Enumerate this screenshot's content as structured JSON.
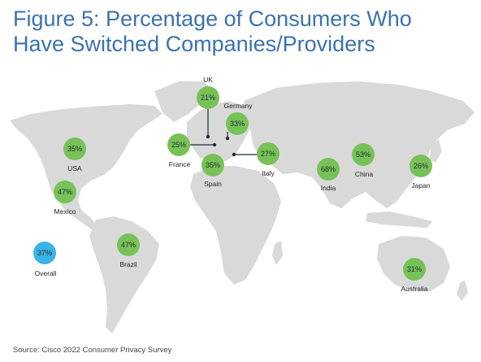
{
  "title_line1": "Figure 5: Percentage of Consumers Who",
  "title_line2": "Have Switched Companies/Providers",
  "source": "Source: Cisco 2022 Consumer Privacy Survey",
  "colors": {
    "title": "#3a72b0",
    "bubble": "#77c257",
    "overall": "#3ab4e6",
    "land": "#d9d9d9"
  },
  "regions": [
    {
      "name": "UK",
      "value": "21%"
    },
    {
      "name": "Germany",
      "value": "33%"
    },
    {
      "name": "France",
      "value": "25%"
    },
    {
      "name": "Spain",
      "value": "35%"
    },
    {
      "name": "Italy",
      "value": "27%"
    },
    {
      "name": "USA",
      "value": "35%"
    },
    {
      "name": "Mexico",
      "value": "47%"
    },
    {
      "name": "Brazil",
      "value": "47%"
    },
    {
      "name": "India",
      "value": "68%"
    },
    {
      "name": "China",
      "value": "53%"
    },
    {
      "name": "Japan",
      "value": "26%"
    },
    {
      "name": "Australia",
      "value": "31%"
    },
    {
      "name": "Overall",
      "value": "37%"
    }
  ]
}
